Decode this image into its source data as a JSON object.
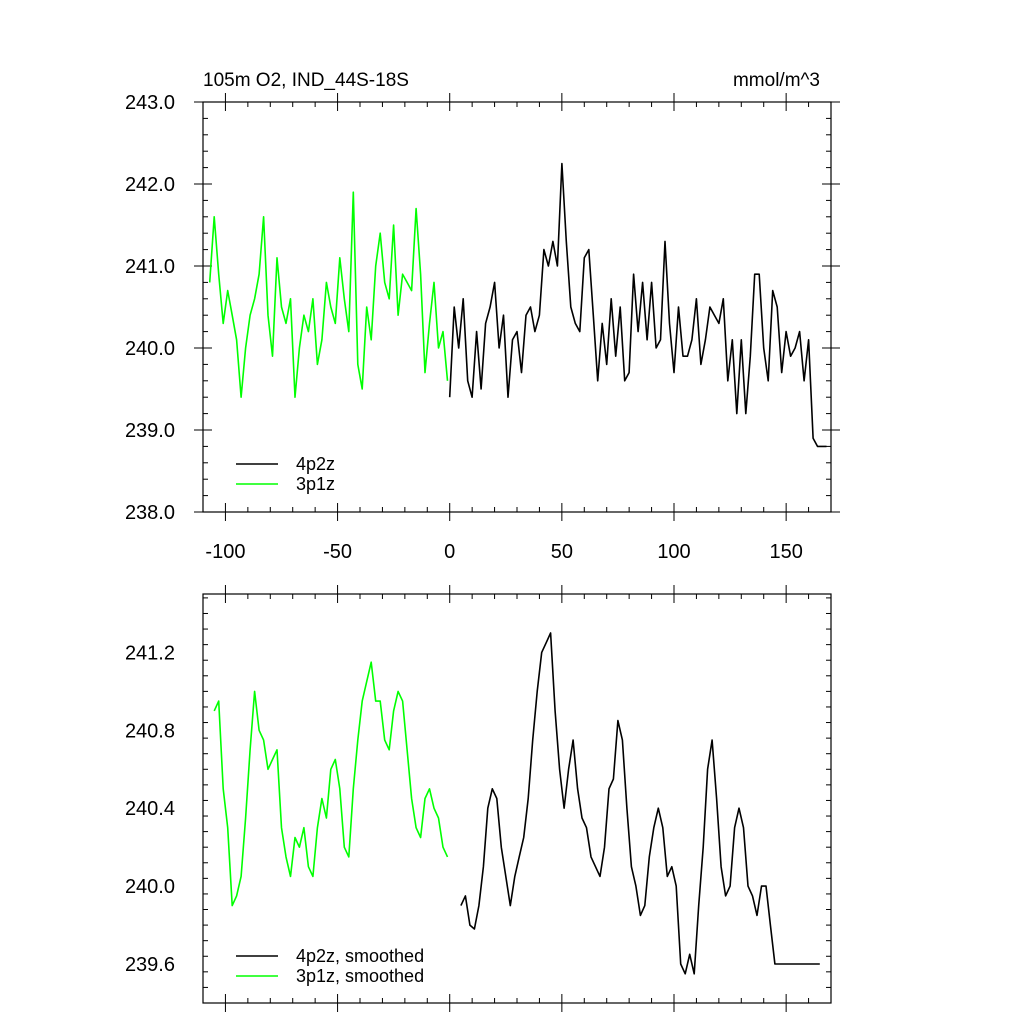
{
  "title_left": "105m O2, IND_44S-18S",
  "title_right": "mmol/m^3",
  "colors": {
    "series_4p2z": "#000000",
    "series_3p1z": "#00ff00",
    "axis": "#000000"
  },
  "chart_data": [
    {
      "type": "line",
      "title": "105m O2, IND_44S-18S",
      "units_label": "mmol/m^3",
      "xlim": [
        -110,
        170
      ],
      "ylim": [
        238.0,
        243.0
      ],
      "xticks": [
        -100,
        -50,
        0,
        50,
        100,
        150
      ],
      "xtick_labels": [
        "-100",
        "-50",
        "0",
        "50",
        "100",
        "150"
      ],
      "yticks": [
        238.0,
        239.0,
        240.0,
        241.0,
        242.0,
        243.0
      ],
      "ytick_labels": [
        "238.0",
        "239.0",
        "240.0",
        "241.0",
        "242.0",
        "243.0"
      ],
      "legend_position": "bottom-left",
      "series": [
        {
          "name": "4p2z",
          "color": "#000000",
          "x": [
            0,
            2,
            4,
            6,
            8,
            10,
            12,
            14,
            16,
            18,
            20,
            22,
            24,
            26,
            28,
            30,
            32,
            34,
            36,
            38,
            40,
            42,
            44,
            46,
            48,
            50,
            52,
            54,
            56,
            58,
            60,
            62,
            64,
            66,
            68,
            70,
            72,
            74,
            76,
            78,
            80,
            82,
            84,
            86,
            88,
            90,
            92,
            94,
            96,
            98,
            100,
            102,
            104,
            106,
            108,
            110,
            112,
            114,
            116,
            118,
            120,
            122,
            124,
            126,
            128,
            130,
            132,
            134,
            136,
            138,
            140,
            142,
            144,
            146,
            148,
            150,
            152,
            154,
            156,
            158,
            160,
            162,
            164,
            166,
            168
          ],
          "values": [
            239.4,
            240.5,
            240.0,
            240.6,
            239.6,
            239.4,
            240.2,
            239.5,
            240.3,
            240.5,
            240.8,
            240.0,
            240.4,
            239.4,
            240.1,
            240.2,
            239.7,
            240.4,
            240.5,
            240.2,
            240.4,
            241.2,
            241.0,
            241.3,
            241.0,
            242.25,
            241.3,
            240.5,
            240.3,
            240.2,
            241.1,
            241.2,
            240.4,
            239.6,
            240.3,
            239.8,
            240.6,
            239.9,
            240.5,
            239.6,
            239.7,
            240.9,
            240.2,
            240.8,
            240.1,
            240.8,
            240.0,
            240.1,
            241.3,
            240.3,
            239.7,
            240.5,
            239.9,
            239.9,
            240.1,
            240.6,
            239.8,
            240.1,
            240.5,
            240.4,
            240.3,
            240.6,
            239.6,
            240.1,
            239.2,
            240.1,
            239.2,
            239.9,
            240.9,
            240.9,
            240.0,
            239.6,
            240.7,
            240.5,
            239.7,
            240.2,
            239.9,
            240.0,
            240.2,
            239.6,
            240.1,
            238.9,
            238.8,
            238.8,
            238.8
          ]
        },
        {
          "name": "3p1z",
          "color": "#00ff00",
          "x": [
            -107,
            -105,
            -103,
            -101,
            -99,
            -97,
            -95,
            -93,
            -91,
            -89,
            -87,
            -85,
            -83,
            -81,
            -79,
            -77,
            -75,
            -73,
            -71,
            -69,
            -67,
            -65,
            -63,
            -61,
            -59,
            -57,
            -55,
            -53,
            -51,
            -49,
            -47,
            -45,
            -43,
            -41,
            -39,
            -37,
            -35,
            -33,
            -31,
            -29,
            -27,
            -25,
            -23,
            -21,
            -19,
            -17,
            -15,
            -13,
            -11,
            -9,
            -7,
            -5,
            -3,
            -1
          ],
          "values": [
            240.8,
            241.6,
            240.9,
            240.3,
            240.7,
            240.4,
            240.1,
            239.4,
            240.0,
            240.4,
            240.6,
            240.9,
            241.6,
            240.4,
            239.9,
            241.1,
            240.5,
            240.3,
            240.6,
            239.4,
            240.0,
            240.4,
            240.2,
            240.6,
            239.8,
            240.1,
            240.8,
            240.5,
            240.3,
            241.1,
            240.6,
            240.2,
            241.9,
            239.8,
            239.5,
            240.5,
            240.1,
            241.0,
            241.4,
            240.8,
            240.6,
            241.5,
            240.4,
            240.9,
            240.8,
            240.7,
            241.7,
            240.9,
            239.7,
            240.3,
            240.8,
            240.0,
            240.2,
            239.6
          ]
        }
      ]
    },
    {
      "type": "line",
      "xlim": [
        -110,
        170
      ],
      "ylim": [
        239.4,
        241.5
      ],
      "yticks": [
        239.6,
        240.0,
        240.4,
        240.8,
        241.2
      ],
      "ytick_labels": [
        "239.6",
        "240.0",
        "240.4",
        "240.8",
        "241.2"
      ],
      "legend_position": "bottom-left",
      "series": [
        {
          "name": "4p2z, smoothed",
          "color": "#000000",
          "x": [
            5,
            7,
            9,
            11,
            13,
            15,
            17,
            19,
            21,
            23,
            25,
            27,
            29,
            31,
            33,
            35,
            37,
            39,
            41,
            43,
            45,
            47,
            49,
            51,
            53,
            55,
            57,
            59,
            61,
            63,
            65,
            67,
            69,
            71,
            73,
            75,
            77,
            79,
            81,
            83,
            85,
            87,
            89,
            91,
            93,
            95,
            97,
            99,
            101,
            103,
            105,
            107,
            109,
            111,
            113,
            115,
            117,
            119,
            121,
            123,
            125,
            127,
            129,
            131,
            133,
            135,
            137,
            139,
            141,
            143,
            145,
            147,
            149,
            151,
            153,
            155,
            157,
            159,
            161,
            163,
            165
          ],
          "values": [
            239.9,
            239.95,
            239.8,
            239.78,
            239.9,
            240.1,
            240.4,
            240.5,
            240.45,
            240.2,
            240.05,
            239.9,
            240.05,
            240.15,
            240.25,
            240.45,
            240.75,
            241.0,
            241.2,
            241.25,
            241.3,
            240.9,
            240.6,
            240.4,
            240.6,
            240.75,
            240.5,
            240.35,
            240.3,
            240.15,
            240.1,
            240.05,
            240.2,
            240.5,
            240.55,
            240.85,
            240.75,
            240.4,
            240.1,
            240.0,
            239.85,
            239.9,
            240.15,
            240.3,
            240.4,
            240.3,
            240.05,
            240.1,
            240.0,
            239.6,
            239.55,
            239.65,
            239.55,
            239.9,
            240.2,
            240.6,
            240.75,
            240.45,
            240.1,
            239.95,
            240.0,
            240.3,
            240.4,
            240.3,
            240.0,
            239.95,
            239.85,
            240.0,
            240.0,
            239.8,
            239.6,
            239.6,
            239.6,
            239.6,
            239.6,
            239.6,
            239.6,
            239.6,
            239.6,
            239.6,
            239.6
          ]
        },
        {
          "name": "3p1z, smoothed",
          "color": "#00ff00",
          "x": [
            -105,
            -103,
            -101,
            -99,
            -97,
            -95,
            -93,
            -91,
            -89,
            -87,
            -85,
            -83,
            -81,
            -79,
            -77,
            -75,
            -73,
            -71,
            -69,
            -67,
            -65,
            -63,
            -61,
            -59,
            -57,
            -55,
            -53,
            -51,
            -49,
            -47,
            -45,
            -43,
            -41,
            -39,
            -37,
            -35,
            -33,
            -31,
            -29,
            -27,
            -25,
            -23,
            -21,
            -19,
            -17,
            -15,
            -13,
            -11,
            -9,
            -7,
            -5,
            -3,
            -1
          ],
          "values": [
            240.9,
            240.95,
            240.5,
            240.3,
            239.9,
            239.95,
            240.05,
            240.35,
            240.7,
            241.0,
            240.8,
            240.75,
            240.6,
            240.65,
            240.7,
            240.3,
            240.15,
            240.05,
            240.25,
            240.2,
            240.3,
            240.1,
            240.05,
            240.3,
            240.45,
            240.35,
            240.6,
            240.65,
            240.5,
            240.2,
            240.15,
            240.5,
            240.75,
            240.95,
            241.05,
            241.15,
            240.95,
            240.95,
            240.75,
            240.7,
            240.9,
            241.0,
            240.95,
            240.7,
            240.45,
            240.3,
            240.25,
            240.45,
            240.5,
            240.4,
            240.35,
            240.2,
            240.15
          ]
        }
      ]
    }
  ]
}
